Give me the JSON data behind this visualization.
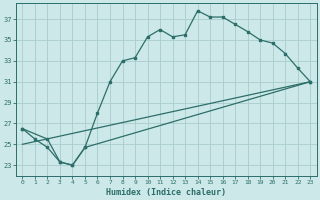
{
  "title": "",
  "xlabel": "Humidex (Indice chaleur)",
  "bg_color": "#cce8e8",
  "grid_color": "#aacccc",
  "line_color": "#2d6e6a",
  "xlim": [
    -0.5,
    23.5
  ],
  "ylim": [
    22.0,
    38.5
  ],
  "yticks": [
    23,
    25,
    27,
    29,
    31,
    33,
    35,
    37
  ],
  "xticks": [
    0,
    1,
    2,
    3,
    4,
    5,
    6,
    7,
    8,
    9,
    10,
    11,
    12,
    13,
    14,
    15,
    16,
    17,
    18,
    19,
    20,
    21,
    22,
    23
  ],
  "line1_x": [
    0,
    1,
    2,
    3,
    4,
    5,
    6,
    7,
    8,
    9,
    10,
    11,
    12,
    13,
    14,
    15,
    16,
    17,
    18,
    19,
    20,
    21,
    22,
    23
  ],
  "line1_y": [
    26.5,
    25.5,
    24.7,
    23.3,
    23.0,
    24.7,
    28.0,
    31.0,
    33.0,
    33.3,
    35.3,
    36.0,
    35.3,
    35.5,
    37.8,
    37.2,
    37.2,
    36.5,
    35.8,
    35.0,
    34.7,
    33.7,
    32.3,
    31.0
  ],
  "line2_x": [
    0,
    2,
    3,
    4,
    5,
    23
  ],
  "line2_y": [
    26.5,
    25.5,
    23.3,
    23.0,
    24.7,
    31.0
  ],
  "line3_x": [
    0,
    23
  ],
  "line3_y": [
    25.0,
    31.0
  ]
}
